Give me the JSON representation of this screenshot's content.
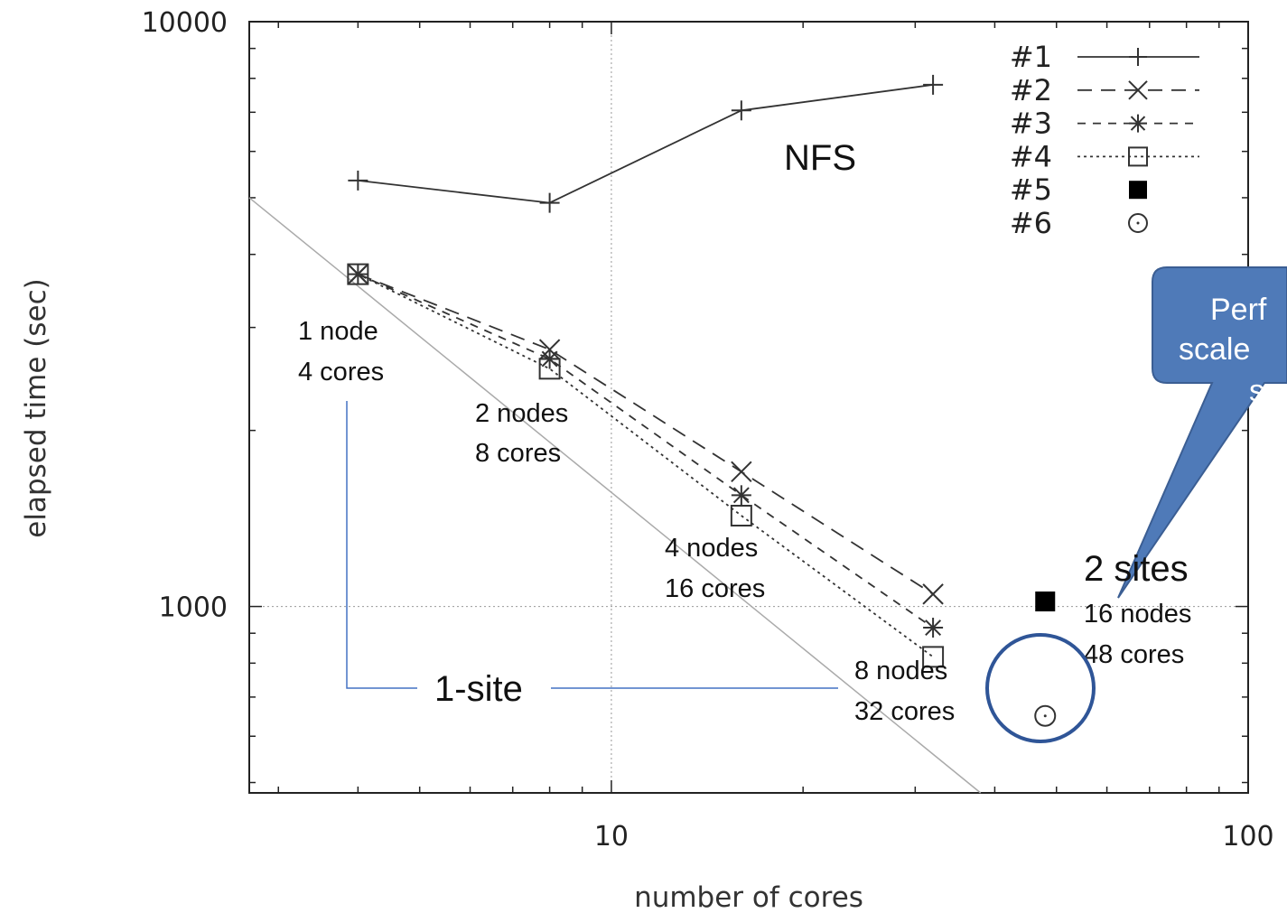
{
  "chart_data": {
    "type": "line",
    "xlabel": "number of cores",
    "ylabel": "elapsed time (sec)",
    "x_scale": "log",
    "y_scale": "log",
    "xlim": [
      2.7,
      100
    ],
    "ylim": [
      480,
      10000
    ],
    "x_ticks": [
      {
        "value": 10,
        "label": "10"
      },
      {
        "value": 100,
        "label": "100"
      }
    ],
    "y_ticks": [
      {
        "value": 1000,
        "label": "1000"
      },
      {
        "value": 10000,
        "label": "10000"
      }
    ],
    "grid": "dotted at major ticks",
    "legend_position": "top-right",
    "series": [
      {
        "name": "#1",
        "marker": "plus",
        "line": "solid",
        "x": [
          4,
          8,
          16,
          32
        ],
        "y": [
          5350,
          4900,
          7050,
          7800
        ]
      },
      {
        "name": "#2",
        "marker": "cross",
        "line": "long-dash",
        "x": [
          4,
          8,
          16,
          32
        ],
        "y": [
          3700,
          2750,
          1700,
          1050
        ]
      },
      {
        "name": "#3",
        "marker": "star",
        "line": "dash",
        "x": [
          4,
          8,
          16,
          32
        ],
        "y": [
          3700,
          2650,
          1550,
          920
        ]
      },
      {
        "name": "#4",
        "marker": "open-square",
        "line": "dotted",
        "x": [
          4,
          8,
          16,
          32
        ],
        "y": [
          3700,
          2550,
          1430,
          820
        ]
      },
      {
        "name": "#5",
        "marker": "filled-square",
        "line": "none",
        "x": [
          48
        ],
        "y": [
          1020
        ]
      },
      {
        "name": "#6",
        "marker": "open-circle",
        "line": "none",
        "x": [
          48
        ],
        "y": [
          650
        ]
      }
    ],
    "reference_line": {
      "x": [
        2.7,
        38
      ],
      "y": [
        5000,
        480
      ]
    },
    "annotations": {
      "nfs": "NFS",
      "n1_line1": "1 node",
      "n1_line2": "4 cores",
      "n2_line1": "2 nodes",
      "n2_line2": "8 cores",
      "n4_line1": "4 nodes",
      "n4_line2": "16 cores",
      "n8_line1": "8 nodes",
      "n8_line2": "32 cores",
      "n16_line1": "16 nodes",
      "n16_line2": "48 cores",
      "one_site": "1-site",
      "two_sites": "2 sites",
      "callout_line1": "Perf",
      "callout_line2": "scale",
      "callout_line3": "s"
    },
    "colors": {
      "callout_fill": "#4f7ab8",
      "callout_stroke": "#3b5e93",
      "bracket": "#4472c4",
      "circle": "#2f5597",
      "reference": "#aaaaaa"
    }
  }
}
